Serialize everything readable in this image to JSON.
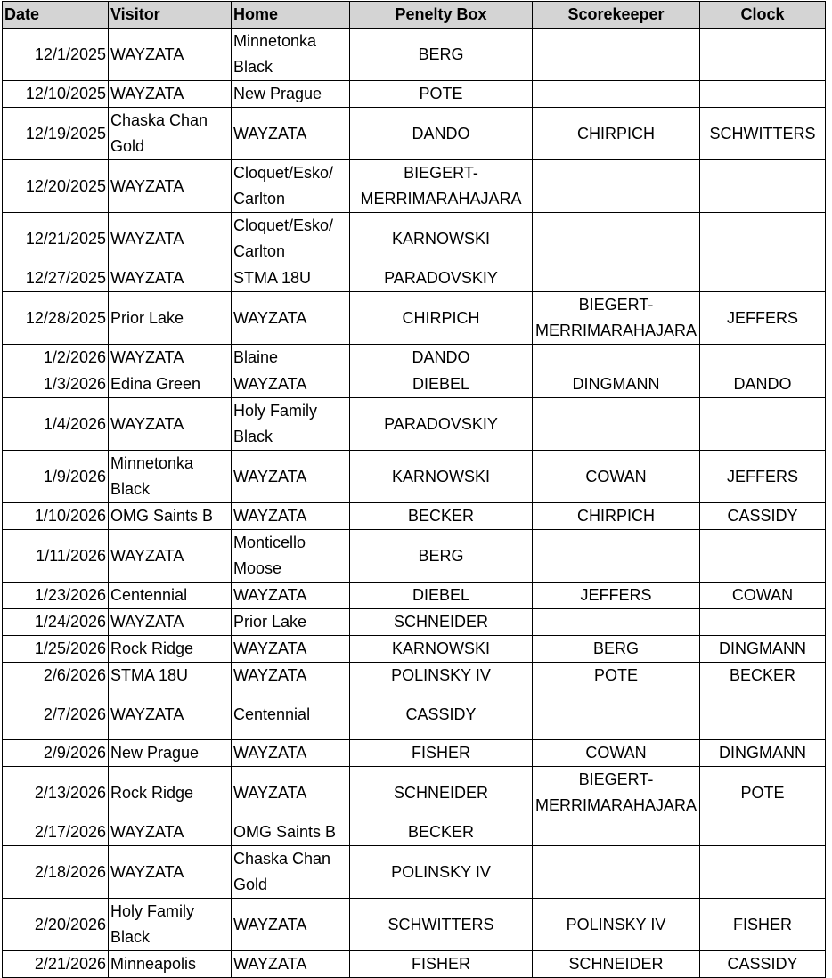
{
  "headers": {
    "date": "Date",
    "visitor": "Visitor",
    "home": "Home",
    "penalty": "Penelty Box",
    "scorekeeper": "Scorekeeper",
    "clock": "Clock"
  },
  "rows": [
    {
      "date": "12/1/2025",
      "visitor": "WAYZATA",
      "home": "Minnetonka Black",
      "penalty": "BERG",
      "scorekeeper": "",
      "clock": ""
    },
    {
      "date": "12/10/2025",
      "visitor": "WAYZATA",
      "home": "New Prague",
      "penalty": "POTE",
      "scorekeeper": "",
      "clock": ""
    },
    {
      "date": "12/19/2025",
      "visitor": "Chaska Chan Gold",
      "home": "WAYZATA",
      "penalty": "DANDO",
      "scorekeeper": "CHIRPICH",
      "clock": "SCHWITTERS"
    },
    {
      "date": "12/20/2025",
      "visitor": "WAYZATA",
      "home": "Cloquet/Esko/ Carlton",
      "penalty": "BIEGERT- MERRIMARAHAJARA",
      "scorekeeper": "",
      "clock": ""
    },
    {
      "date": "12/21/2025",
      "visitor": "WAYZATA",
      "home": "Cloquet/Esko/ Carlton",
      "penalty": "KARNOWSKI",
      "scorekeeper": "",
      "clock": ""
    },
    {
      "date": "12/27/2025",
      "visitor": "WAYZATA",
      "home": "STMA 18U",
      "penalty": "PARADOVSKIY",
      "scorekeeper": "",
      "clock": ""
    },
    {
      "date": "12/28/2025",
      "visitor": "Prior Lake",
      "home": "WAYZATA",
      "penalty": "CHIRPICH",
      "scorekeeper": "BIEGERT- MERRIMARAHAJARA",
      "clock": "JEFFERS"
    },
    {
      "date": "1/2/2026",
      "visitor": "WAYZATA",
      "home": "Blaine",
      "penalty": "DANDO",
      "scorekeeper": "",
      "clock": ""
    },
    {
      "date": "1/3/2026",
      "visitor": "Edina Green",
      "home": "WAYZATA",
      "penalty": "DIEBEL",
      "scorekeeper": "DINGMANN",
      "clock": "DANDO"
    },
    {
      "date": "1/4/2026",
      "visitor": "WAYZATA",
      "home": "Holy Family Black",
      "penalty": "PARADOVSKIY",
      "scorekeeper": "",
      "clock": ""
    },
    {
      "date": "1/9/2026",
      "visitor": "Minnetonka Black",
      "home": "WAYZATA",
      "penalty": "KARNOWSKI",
      "scorekeeper": "COWAN",
      "clock": "JEFFERS"
    },
    {
      "date": "1/10/2026",
      "visitor": "OMG Saints B",
      "home": "WAYZATA",
      "penalty": "BECKER",
      "scorekeeper": "CHIRPICH",
      "clock": "CASSIDY"
    },
    {
      "date": "1/11/2026",
      "visitor": "WAYZATA",
      "home": "Monticello Moose",
      "penalty": "BERG",
      "scorekeeper": "",
      "clock": ""
    },
    {
      "date": "1/23/2026",
      "visitor": "Centennial",
      "home": "WAYZATA",
      "penalty": "DIEBEL",
      "scorekeeper": "JEFFERS",
      "clock": "COWAN"
    },
    {
      "date": "1/24/2026",
      "visitor": "WAYZATA",
      "home": "Prior Lake",
      "penalty": "SCHNEIDER",
      "scorekeeper": "",
      "clock": ""
    },
    {
      "date": "1/25/2026",
      "visitor": "Rock Ridge",
      "home": "WAYZATA",
      "penalty": "KARNOWSKI",
      "scorekeeper": "BERG",
      "clock": "DINGMANN"
    },
    {
      "date": "2/6/2026",
      "visitor": "STMA 18U",
      "home": "WAYZATA",
      "penalty": "POLINSKY IV",
      "scorekeeper": "POTE",
      "clock": "BECKER"
    },
    {
      "date": "2/7/2026",
      "visitor": "WAYZATA",
      "home": "Centennial",
      "penalty": "CASSIDY",
      "scorekeeper": "",
      "clock": ""
    },
    {
      "date": "2/9/2026",
      "visitor": "New Prague",
      "home": "WAYZATA",
      "penalty": "FISHER",
      "scorekeeper": "COWAN",
      "clock": "DINGMANN"
    },
    {
      "date": "2/13/2026",
      "visitor": "Rock Ridge",
      "home": "WAYZATA",
      "penalty": "SCHNEIDER",
      "scorekeeper": "BIEGERT- MERRIMARAHAJARA",
      "clock": "POTE"
    },
    {
      "date": "2/17/2026",
      "visitor": "WAYZATA",
      "home": "OMG Saints B",
      "penalty": "BECKER",
      "scorekeeper": "",
      "clock": ""
    },
    {
      "date": "2/18/2026",
      "visitor": "WAYZATA",
      "home": "Chaska Chan Gold",
      "penalty": "POLINSKY IV",
      "scorekeeper": "",
      "clock": ""
    },
    {
      "date": "2/20/2026",
      "visitor": "Holy Family Black",
      "home": "WAYZATA",
      "penalty": "SCHWITTERS",
      "scorekeeper": "POLINSKY IV",
      "clock": "FISHER"
    },
    {
      "date": "2/21/2026",
      "visitor": "Minneapolis",
      "home": "WAYZATA",
      "penalty": "FISHER",
      "scorekeeper": "SCHNEIDER",
      "clock": "CASSIDY"
    }
  ]
}
